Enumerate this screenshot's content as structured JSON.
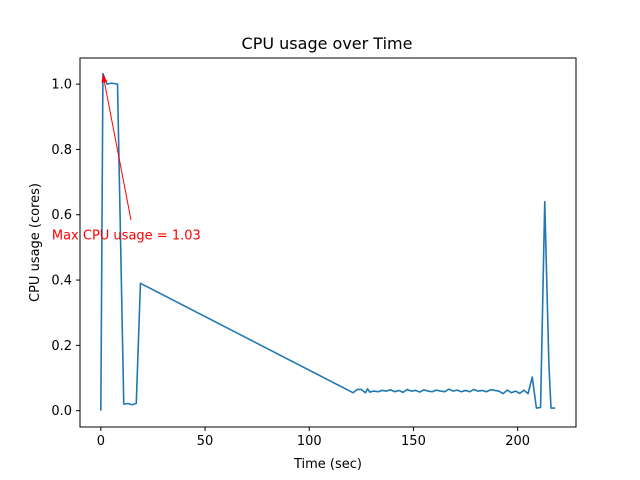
{
  "chart_data": {
    "type": "line",
    "title": "CPU usage over Time",
    "xlabel": "Time (sec)",
    "ylabel": "CPU usage (cores)",
    "xlim": [
      -10,
      228
    ],
    "ylim": [
      -0.05,
      1.08
    ],
    "xticks": [
      0,
      50,
      100,
      150,
      200
    ],
    "yticks": [
      0.0,
      0.2,
      0.4,
      0.6,
      0.8,
      1.0
    ],
    "xtick_labels": [
      "0",
      "50",
      "100",
      "150",
      "200"
    ],
    "ytick_labels": [
      "0.0",
      "0.2",
      "0.4",
      "0.6",
      "0.8",
      "1.0"
    ],
    "grid": false,
    "colors": {
      "line": "#1f77b4",
      "annotation": "#ff0000"
    },
    "series": [
      {
        "x": [
          0,
          1,
          3,
          5,
          8,
          11,
          13,
          15,
          17,
          19,
          121,
          123,
          125,
          127,
          128,
          129,
          131,
          133,
          135,
          137,
          139,
          141,
          143,
          145,
          147,
          149,
          151,
          153,
          155,
          157,
          159,
          161,
          163,
          165,
          167,
          169,
          171,
          173,
          175,
          177,
          179,
          181,
          183,
          185,
          187,
          189,
          191,
          193,
          195,
          197,
          199,
          201,
          203,
          205,
          207,
          209,
          211,
          213,
          215,
          216,
          218
        ],
        "y": [
          0.0,
          1.032,
          1.0,
          1.003,
          1.0,
          0.02,
          0.022,
          0.018,
          0.022,
          0.39,
          0.055,
          0.065,
          0.065,
          0.055,
          0.067,
          0.057,
          0.06,
          0.058,
          0.062,
          0.06,
          0.064,
          0.058,
          0.062,
          0.056,
          0.065,
          0.06,
          0.062,
          0.057,
          0.064,
          0.06,
          0.058,
          0.063,
          0.06,
          0.058,
          0.066,
          0.06,
          0.063,
          0.058,
          0.062,
          0.058,
          0.065,
          0.06,
          0.062,
          0.058,
          0.064,
          0.062,
          0.06,
          0.052,
          0.063,
          0.055,
          0.06,
          0.053,
          0.063,
          0.052,
          0.103,
          0.008,
          0.01,
          0.64,
          0.14,
          0.008,
          0.008
        ]
      }
    ],
    "annotation": {
      "text": "Max CPU usage = 1.03",
      "point": [
        1,
        1.03
      ],
      "text_x": -23.5,
      "text_y": 0.54
    }
  }
}
